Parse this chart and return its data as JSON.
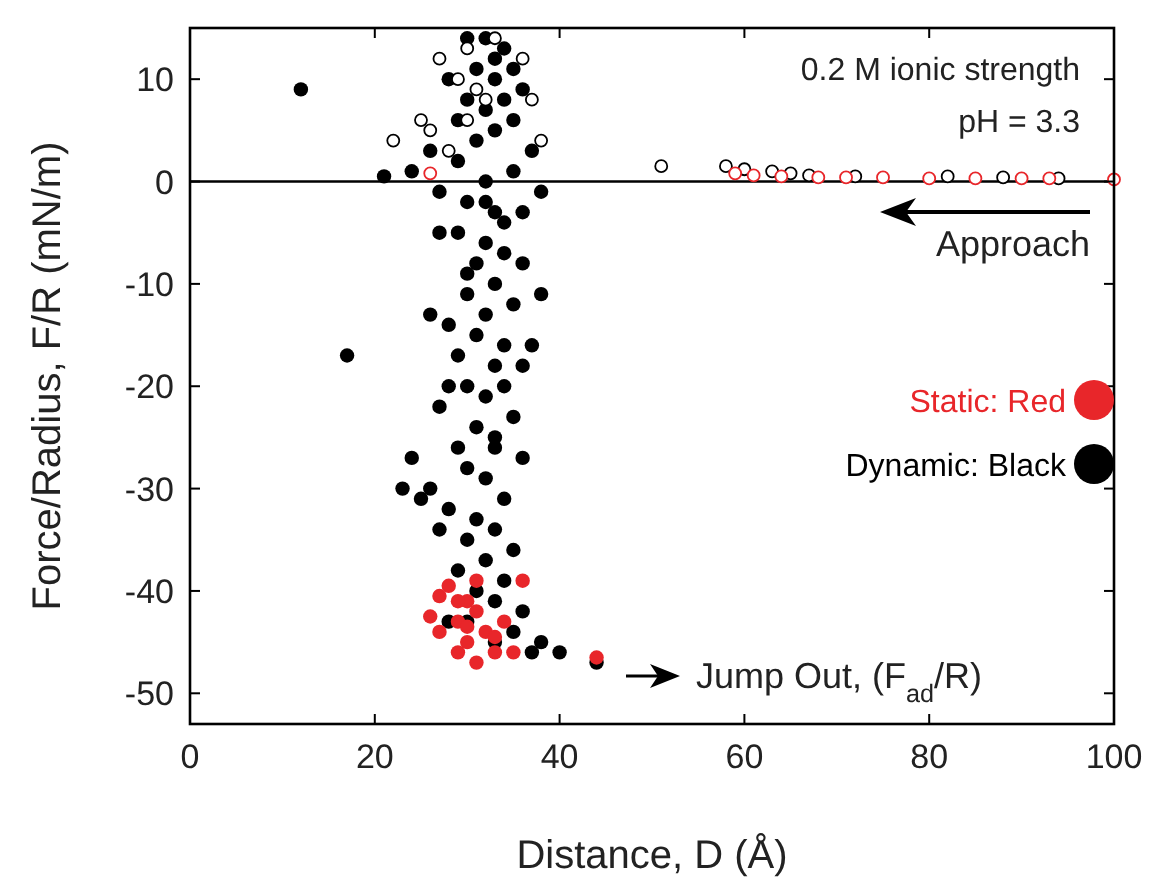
{
  "chart_data": {
    "type": "scatter",
    "xlabel": "Distance, D (Å)",
    "ylabel": "Force/Radius, F/R (mN/m)",
    "xlim": [
      0,
      100
    ],
    "ylim": [
      -53,
      15
    ],
    "xticks": [
      0,
      20,
      40,
      60,
      80,
      100
    ],
    "yticks": [
      -50,
      -40,
      -30,
      -20,
      -10,
      0,
      10
    ],
    "grid": false,
    "legend": "right",
    "marker": "circle",
    "ref_lines": [
      {
        "axis": "y",
        "value": 0,
        "color": "#000000"
      }
    ],
    "annotations": [
      "0.2 M ionic strength",
      "pH = 3.3",
      "Approach",
      "Jump Out, (F$_{ad}$/R)"
    ],
    "series": [
      {
        "name": "Dynamic: Black",
        "color": "#000000",
        "x": [
          30,
          32,
          34,
          33,
          31,
          35,
          28,
          33,
          36,
          30,
          34,
          32,
          35,
          29,
          33,
          31,
          37,
          26,
          24,
          29,
          35,
          32,
          38,
          27,
          30,
          33,
          36,
          29,
          32,
          34,
          31,
          33,
          30,
          35,
          32,
          28,
          31,
          34,
          29,
          33,
          36,
          30,
          32,
          27,
          35,
          31,
          33,
          29,
          36,
          30,
          32,
          26,
          34,
          28,
          31,
          33,
          30,
          35,
          32,
          29,
          34,
          31,
          33,
          36,
          30,
          35,
          38,
          33,
          37,
          40,
          44,
          28,
          25,
          23,
          24,
          27,
          34,
          26,
          32,
          38,
          37,
          12,
          17,
          21,
          27,
          36,
          30,
          34,
          33,
          28
        ],
        "values": [
          14,
          14,
          13,
          12,
          11,
          11,
          10,
          10,
          9,
          8,
          8,
          7,
          6,
          6,
          5,
          4,
          3,
          3,
          1,
          2,
          1,
          0,
          -1,
          -1,
          -2,
          -3,
          -3,
          -5,
          -6,
          -7,
          -8,
          -10,
          -11,
          -12,
          -13,
          -14,
          -15,
          -16,
          -17,
          -18,
          -18,
          -20,
          -21,
          -22,
          -23,
          -24,
          -25,
          -26,
          -27,
          -28,
          -29,
          -30,
          -31,
          -32,
          -33,
          -34,
          -35,
          -36,
          -37,
          -38,
          -39,
          -40,
          -41,
          -42,
          -43,
          -44,
          -45,
          -45,
          -46,
          -46,
          -47,
          -43,
          -31,
          -30,
          -27,
          -34,
          -20,
          -13,
          -2,
          -11,
          -16,
          9,
          -17,
          0.5,
          -5,
          -8,
          -9,
          -4,
          -26,
          -20
        ]
      },
      {
        "name": "Static: Red",
        "color": "#e8262a",
        "x": [
          27,
          30,
          29,
          31,
          27,
          30,
          32,
          33,
          29,
          35,
          31,
          36,
          26,
          34,
          28,
          30,
          44,
          31,
          33,
          29
        ],
        "values": [
          -40.5,
          -41,
          -43,
          -42,
          -44,
          -45,
          -44,
          -46,
          -46,
          -46,
          -39,
          -39,
          -42.5,
          -43,
          -39.5,
          -43.5,
          -46.5,
          -47,
          -44.5,
          -41
        ]
      },
      {
        "color": "#000000",
        "x": [
          22,
          27,
          29,
          31,
          30,
          26,
          28,
          33,
          36,
          37,
          32,
          38,
          25,
          30,
          51,
          58,
          60,
          63,
          65,
          67,
          72,
          82,
          88,
          94
        ],
        "values": [
          4,
          12,
          10,
          9,
          6,
          5,
          3,
          14,
          12,
          8,
          8,
          4,
          6,
          13,
          1.5,
          1.5,
          1.2,
          1,
          0.8,
          0.6,
          0.5,
          0.5,
          0.4,
          0.3
        ]
      },
      {
        "color": "#e8262a",
        "x": [
          26,
          59,
          61,
          64,
          68,
          71,
          75,
          80,
          85,
          90,
          93,
          100
        ],
        "values": [
          0.8,
          0.8,
          0.6,
          0.5,
          0.4,
          0.4,
          0.4,
          0.3,
          0.3,
          0.3,
          0.3,
          0.2
        ]
      }
    ]
  }
}
